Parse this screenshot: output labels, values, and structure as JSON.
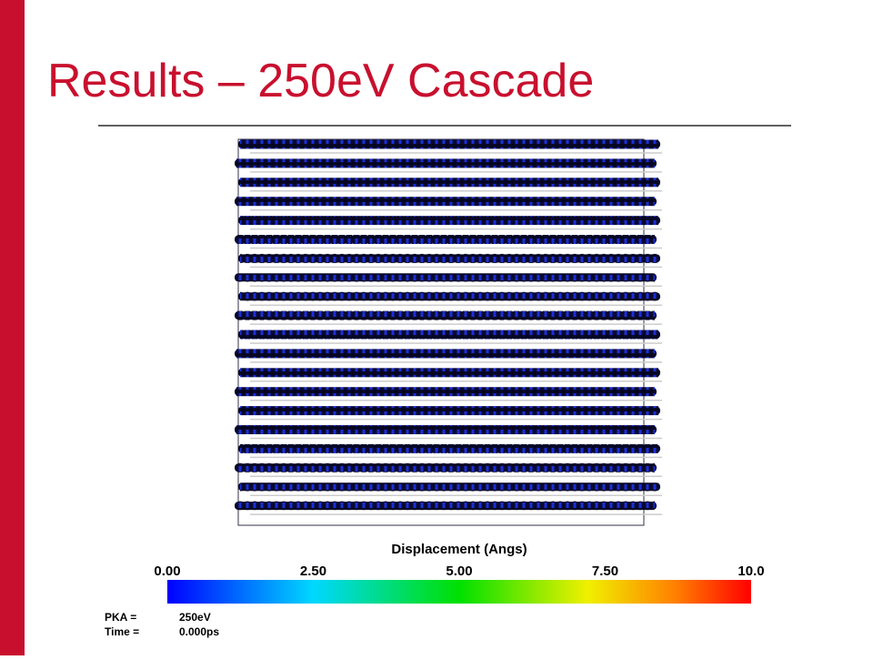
{
  "title": "Results – 250eV Cascade",
  "colorbar": {
    "label": "Displacement (Angs)",
    "ticks": [
      "0.00",
      "2.50",
      "5.00",
      "7.50",
      "10.0"
    ]
  },
  "info": {
    "pka_label": "PKA =",
    "pka_value": "250eV",
    "time_label": "Time =",
    "time_value": "0.000ps"
  }
}
